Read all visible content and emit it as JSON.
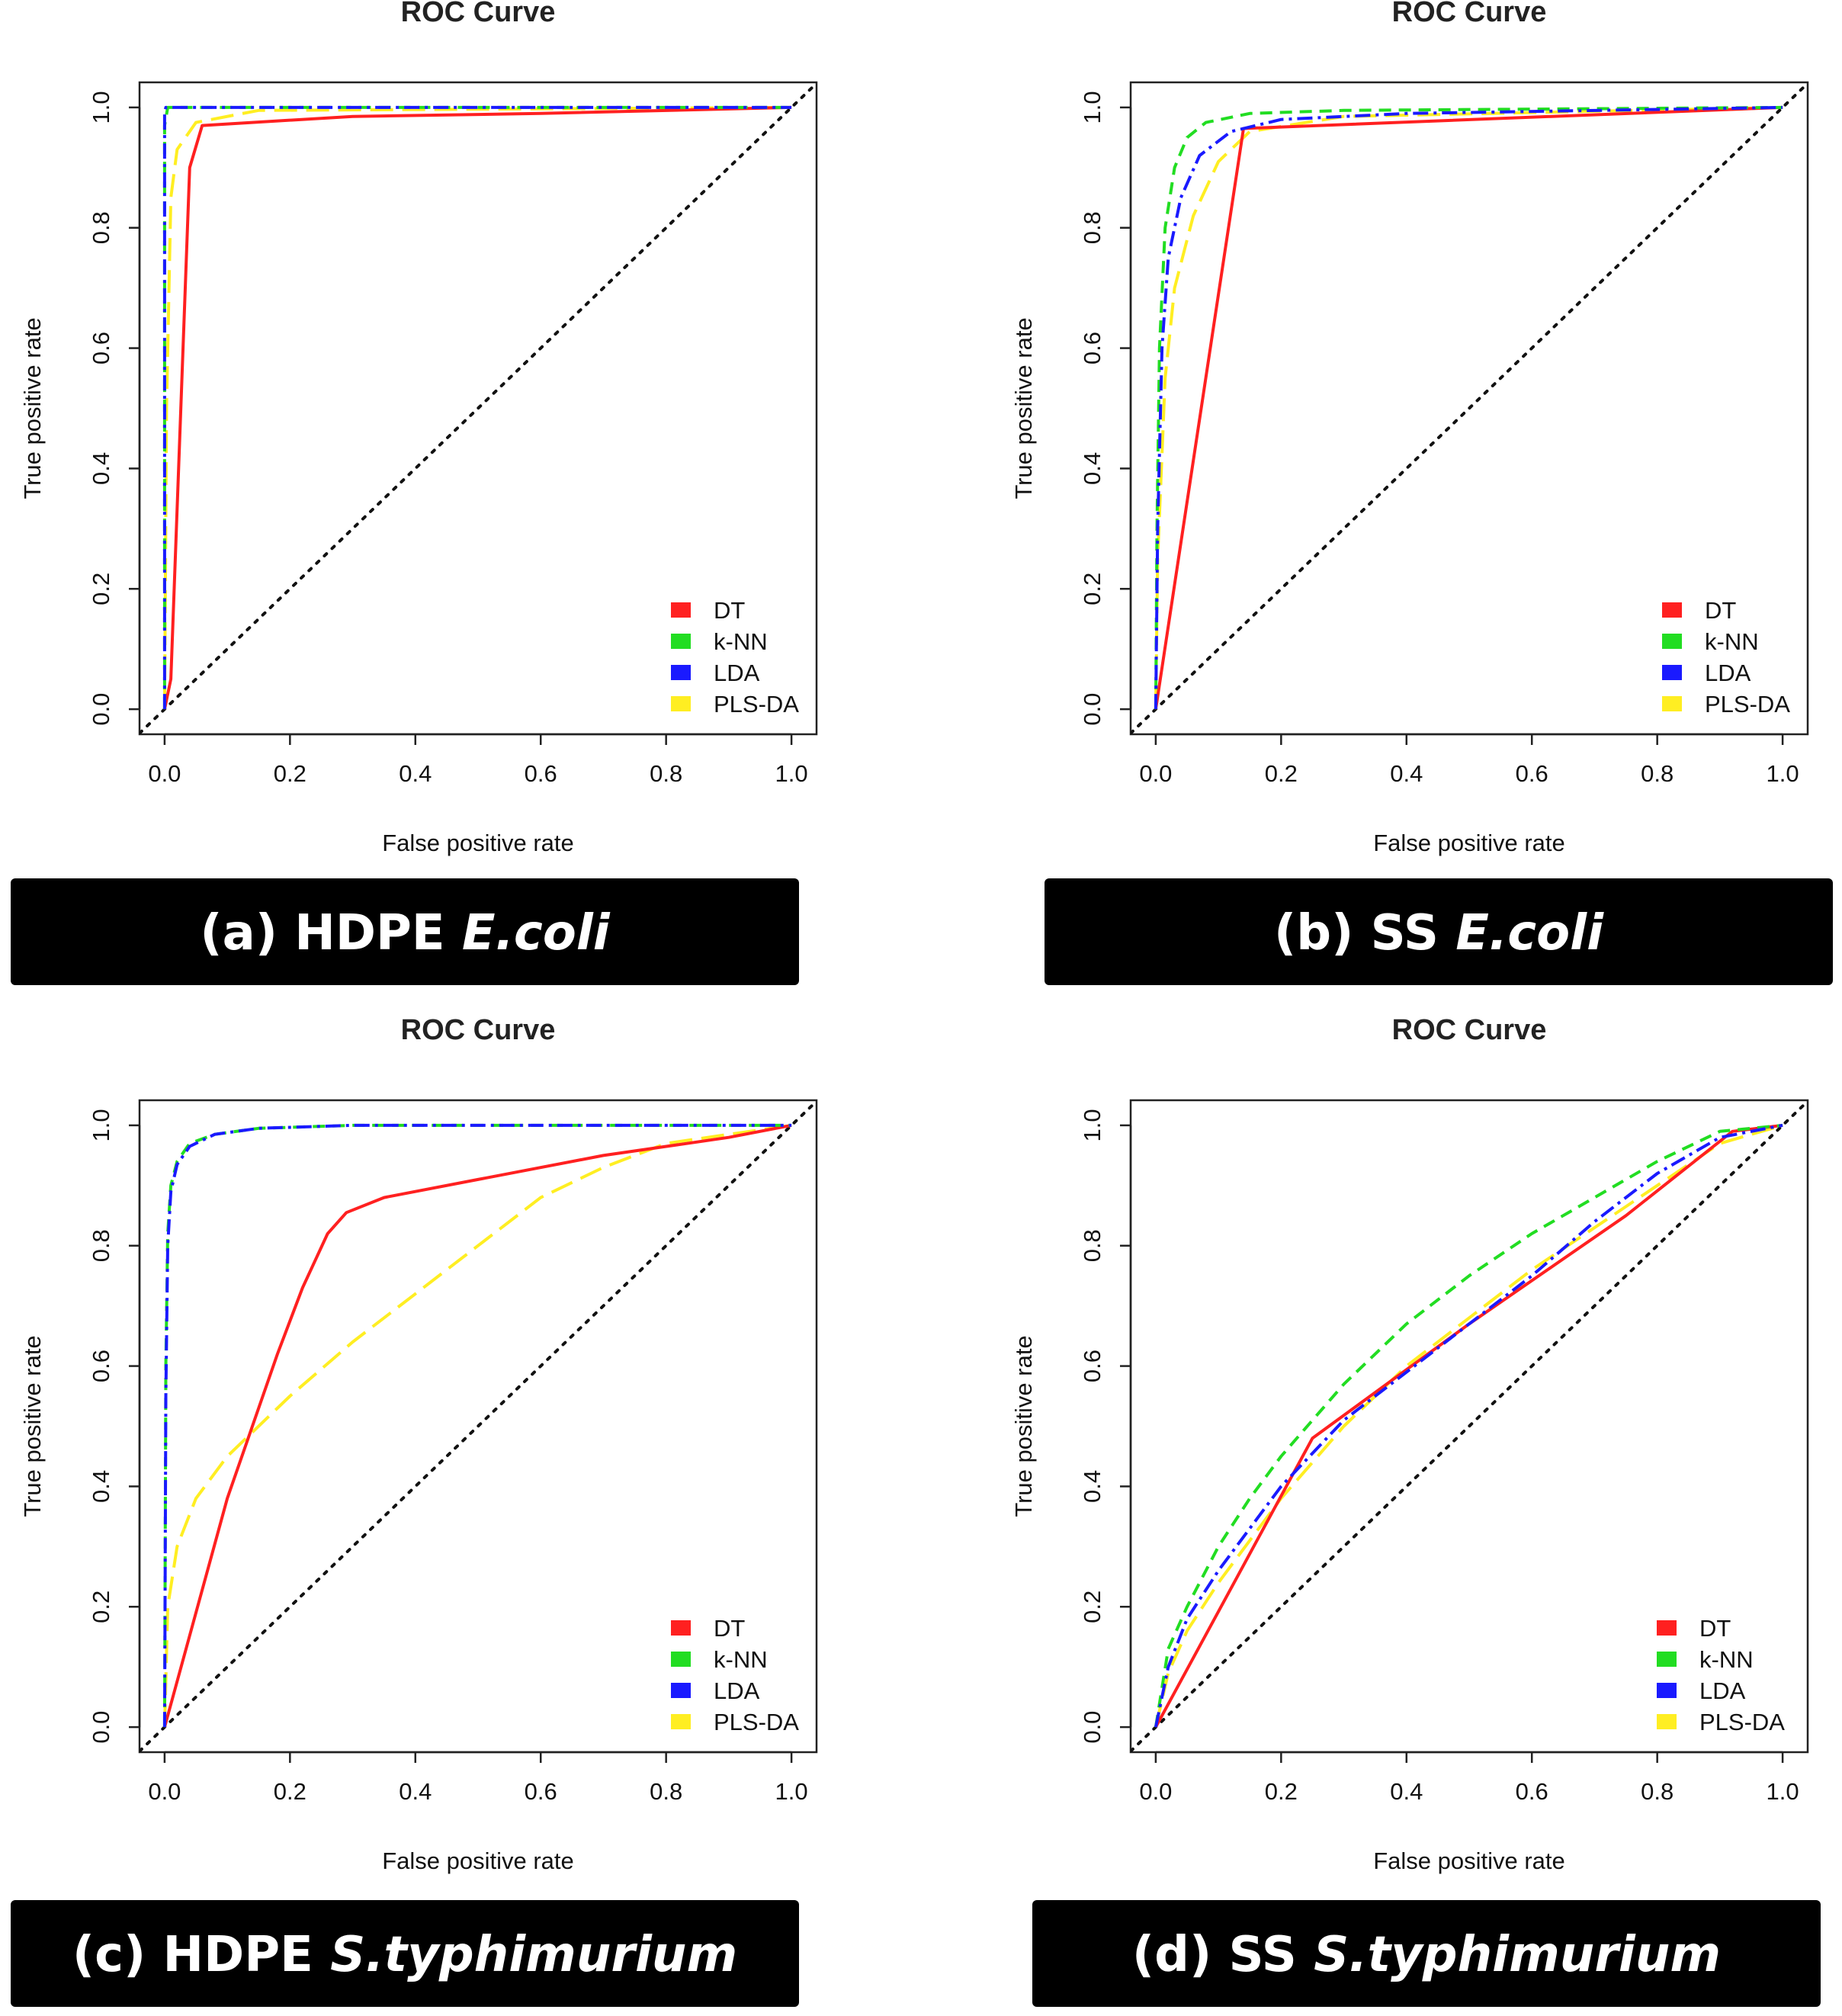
{
  "colors": {
    "DT": "#ff2020",
    "k-NN": "#22dd22",
    "LDA": "#1a1aff",
    "PLS-DA": "#ffee22",
    "diagonal": "#111111",
    "caption_bg": "#000000"
  },
  "chart_data": [
    {
      "type": "line",
      "title": "ROC Curve",
      "xlabel": "False positive rate",
      "ylabel": "True positive rate",
      "xlim": [
        0,
        1
      ],
      "ylim": [
        0,
        1
      ],
      "xticks": [
        "0.0",
        "0.2",
        "0.4",
        "0.6",
        "0.8",
        "1.0"
      ],
      "yticks": [
        "0.0",
        "0.2",
        "0.4",
        "0.6",
        "0.8",
        "1.0"
      ],
      "legend": [
        "DT",
        "k-NN",
        "LDA",
        "PLS-DA"
      ],
      "legend_position": "bottom-right",
      "caption": {
        "prefix": "(a) HDPE ",
        "organism": "E.coli"
      },
      "series": [
        {
          "name": "DT",
          "points": [
            [
              0,
              0
            ],
            [
              0.01,
              0.05
            ],
            [
              0.04,
              0.9
            ],
            [
              0.06,
              0.97
            ],
            [
              0.3,
              0.985
            ],
            [
              0.6,
              0.99
            ],
            [
              1,
              1
            ]
          ]
        },
        {
          "name": "k-NN",
          "points": [
            [
              0,
              0
            ],
            [
              0,
              0.5
            ],
            [
              0,
              0.97
            ],
            [
              0.005,
              1
            ],
            [
              1,
              1
            ]
          ]
        },
        {
          "name": "LDA",
          "points": [
            [
              0,
              0
            ],
            [
              0,
              0.6
            ],
            [
              0,
              0.99
            ],
            [
              0.002,
              1
            ],
            [
              1,
              1
            ]
          ]
        },
        {
          "name": "PLS-DA",
          "points": [
            [
              0,
              0
            ],
            [
              0.003,
              0.5
            ],
            [
              0.01,
              0.85
            ],
            [
              0.02,
              0.93
            ],
            [
              0.05,
              0.975
            ],
            [
              0.15,
              0.995
            ],
            [
              1,
              1
            ]
          ]
        },
        {
          "name": "diagonal",
          "points": [
            [
              -0.04,
              -0.04
            ],
            [
              1.04,
              1.04
            ]
          ]
        }
      ]
    },
    {
      "type": "line",
      "title": "ROC Curve",
      "xlabel": "False positive rate",
      "ylabel": "True positive rate",
      "xlim": [
        0,
        1
      ],
      "ylim": [
        0,
        1
      ],
      "xticks": [
        "0.0",
        "0.2",
        "0.4",
        "0.6",
        "0.8",
        "1.0"
      ],
      "yticks": [
        "0.0",
        "0.2",
        "0.4",
        "0.6",
        "0.8",
        "1.0"
      ],
      "legend": [
        "DT",
        "k-NN",
        "LDA",
        "PLS-DA"
      ],
      "legend_position": "bottom-right",
      "caption": {
        "prefix": "(b) SS ",
        "organism": "E.coli"
      },
      "series": [
        {
          "name": "DT",
          "points": [
            [
              0,
              0
            ],
            [
              0.14,
              0.965
            ],
            [
              1,
              1
            ]
          ]
        },
        {
          "name": "k-NN",
          "points": [
            [
              0,
              0
            ],
            [
              0.002,
              0.3
            ],
            [
              0.006,
              0.6
            ],
            [
              0.015,
              0.8
            ],
            [
              0.03,
              0.9
            ],
            [
              0.05,
              0.95
            ],
            [
              0.08,
              0.975
            ],
            [
              0.15,
              0.99
            ],
            [
              0.3,
              0.995
            ],
            [
              1,
              1
            ]
          ]
        },
        {
          "name": "LDA",
          "points": [
            [
              0,
              0
            ],
            [
              0.003,
              0.3
            ],
            [
              0.01,
              0.6
            ],
            [
              0.02,
              0.75
            ],
            [
              0.04,
              0.85
            ],
            [
              0.07,
              0.92
            ],
            [
              0.12,
              0.96
            ],
            [
              0.2,
              0.98
            ],
            [
              0.4,
              0.99
            ],
            [
              1,
              1
            ]
          ]
        },
        {
          "name": "PLS-DA",
          "points": [
            [
              0,
              0
            ],
            [
              0.003,
              0.25
            ],
            [
              0.015,
              0.55
            ],
            [
              0.03,
              0.7
            ],
            [
              0.06,
              0.82
            ],
            [
              0.1,
              0.91
            ],
            [
              0.15,
              0.96
            ],
            [
              0.3,
              0.985
            ],
            [
              1,
              1
            ]
          ]
        },
        {
          "name": "diagonal",
          "points": [
            [
              -0.04,
              -0.04
            ],
            [
              1.04,
              1.04
            ]
          ]
        }
      ]
    },
    {
      "type": "line",
      "title": "ROC Curve",
      "xlabel": "False positive rate",
      "ylabel": "True positive rate",
      "xlim": [
        0,
        1
      ],
      "ylim": [
        0,
        1
      ],
      "xticks": [
        "0.0",
        "0.2",
        "0.4",
        "0.6",
        "0.8",
        "1.0"
      ],
      "yticks": [
        "0.0",
        "0.2",
        "0.4",
        "0.6",
        "0.8",
        "1.0"
      ],
      "legend": [
        "DT",
        "k-NN",
        "LDA",
        "PLS-DA"
      ],
      "legend_position": "bottom-right",
      "caption": {
        "prefix": "(c) HDPE ",
        "organism": "S.typhimurium"
      },
      "series": [
        {
          "name": "DT",
          "points": [
            [
              0,
              0
            ],
            [
              0.1,
              0.38
            ],
            [
              0.18,
              0.62
            ],
            [
              0.22,
              0.73
            ],
            [
              0.26,
              0.82
            ],
            [
              0.29,
              0.855
            ],
            [
              0.35,
              0.88
            ],
            [
              0.5,
              0.91
            ],
            [
              0.7,
              0.95
            ],
            [
              0.9,
              0.98
            ],
            [
              1,
              1
            ]
          ]
        },
        {
          "name": "k-NN",
          "points": [
            [
              0,
              0
            ],
            [
              0.002,
              0.6
            ],
            [
              0.005,
              0.82
            ],
            [
              0.01,
              0.9
            ],
            [
              0.02,
              0.94
            ],
            [
              0.04,
              0.97
            ],
            [
              0.08,
              0.985
            ],
            [
              0.15,
              0.995
            ],
            [
              0.3,
              1
            ],
            [
              1,
              1
            ]
          ]
        },
        {
          "name": "LDA",
          "points": [
            [
              0,
              0
            ],
            [
              0.002,
              0.55
            ],
            [
              0.005,
              0.8
            ],
            [
              0.01,
              0.89
            ],
            [
              0.02,
              0.935
            ],
            [
              0.04,
              0.965
            ],
            [
              0.08,
              0.985
            ],
            [
              0.15,
              0.995
            ],
            [
              0.3,
              1
            ],
            [
              1,
              1
            ]
          ]
        },
        {
          "name": "PLS-DA",
          "points": [
            [
              0,
              0
            ],
            [
              0.005,
              0.2
            ],
            [
              0.02,
              0.3
            ],
            [
              0.05,
              0.38
            ],
            [
              0.1,
              0.45
            ],
            [
              0.2,
              0.55
            ],
            [
              0.3,
              0.64
            ],
            [
              0.4,
              0.72
            ],
            [
              0.5,
              0.8
            ],
            [
              0.6,
              0.88
            ],
            [
              0.7,
              0.93
            ],
            [
              0.8,
              0.97
            ],
            [
              1,
              1
            ]
          ]
        },
        {
          "name": "diagonal",
          "points": [
            [
              -0.04,
              -0.04
            ],
            [
              1.04,
              1.04
            ]
          ]
        }
      ]
    },
    {
      "type": "line",
      "title": "ROC Curve",
      "xlabel": "False positive rate",
      "ylabel": "True positive rate",
      "xlim": [
        0,
        1
      ],
      "ylim": [
        0,
        1
      ],
      "xticks": [
        "0.0",
        "0.2",
        "0.4",
        "0.6",
        "0.8",
        "1.0"
      ],
      "yticks": [
        "0.0",
        "0.2",
        "0.4",
        "0.6",
        "0.8",
        "1.0"
      ],
      "legend": [
        "DT",
        "k-NN",
        "LDA",
        "PLS-DA"
      ],
      "legend_position": "bottom-right",
      "caption": {
        "prefix": "(d) SS ",
        "organism": "S.typhimurium"
      },
      "series": [
        {
          "name": "DT",
          "points": [
            [
              0,
              0
            ],
            [
              0.25,
              0.48
            ],
            [
              0.5,
              0.67
            ],
            [
              0.75,
              0.85
            ],
            [
              0.92,
              0.99
            ],
            [
              1,
              1
            ]
          ]
        },
        {
          "name": "k-NN",
          "points": [
            [
              0,
              0
            ],
            [
              0.02,
              0.13
            ],
            [
              0.05,
              0.2
            ],
            [
              0.1,
              0.3
            ],
            [
              0.15,
              0.38
            ],
            [
              0.2,
              0.45
            ],
            [
              0.3,
              0.57
            ],
            [
              0.4,
              0.67
            ],
            [
              0.5,
              0.75
            ],
            [
              0.6,
              0.82
            ],
            [
              0.7,
              0.88
            ],
            [
              0.8,
              0.94
            ],
            [
              0.9,
              0.99
            ],
            [
              1,
              1
            ]
          ]
        },
        {
          "name": "LDA",
          "points": [
            [
              0,
              0
            ],
            [
              0.02,
              0.1
            ],
            [
              0.05,
              0.18
            ],
            [
              0.1,
              0.26
            ],
            [
              0.2,
              0.4
            ],
            [
              0.3,
              0.51
            ],
            [
              0.4,
              0.59
            ],
            [
              0.5,
              0.67
            ],
            [
              0.6,
              0.75
            ],
            [
              0.7,
              0.84
            ],
            [
              0.8,
              0.92
            ],
            [
              0.9,
              0.98
            ],
            [
              1,
              1
            ]
          ]
        },
        {
          "name": "PLS-DA",
          "points": [
            [
              0,
              0
            ],
            [
              0.02,
              0.09
            ],
            [
              0.05,
              0.16
            ],
            [
              0.1,
              0.24
            ],
            [
              0.2,
              0.38
            ],
            [
              0.3,
              0.5
            ],
            [
              0.4,
              0.6
            ],
            [
              0.5,
              0.68
            ],
            [
              0.6,
              0.76
            ],
            [
              0.7,
              0.83
            ],
            [
              0.8,
              0.9
            ],
            [
              0.9,
              0.97
            ],
            [
              1,
              1
            ]
          ]
        },
        {
          "name": "diagonal",
          "points": [
            [
              -0.04,
              -0.04
            ],
            [
              1.04,
              1.04
            ]
          ]
        }
      ]
    }
  ]
}
